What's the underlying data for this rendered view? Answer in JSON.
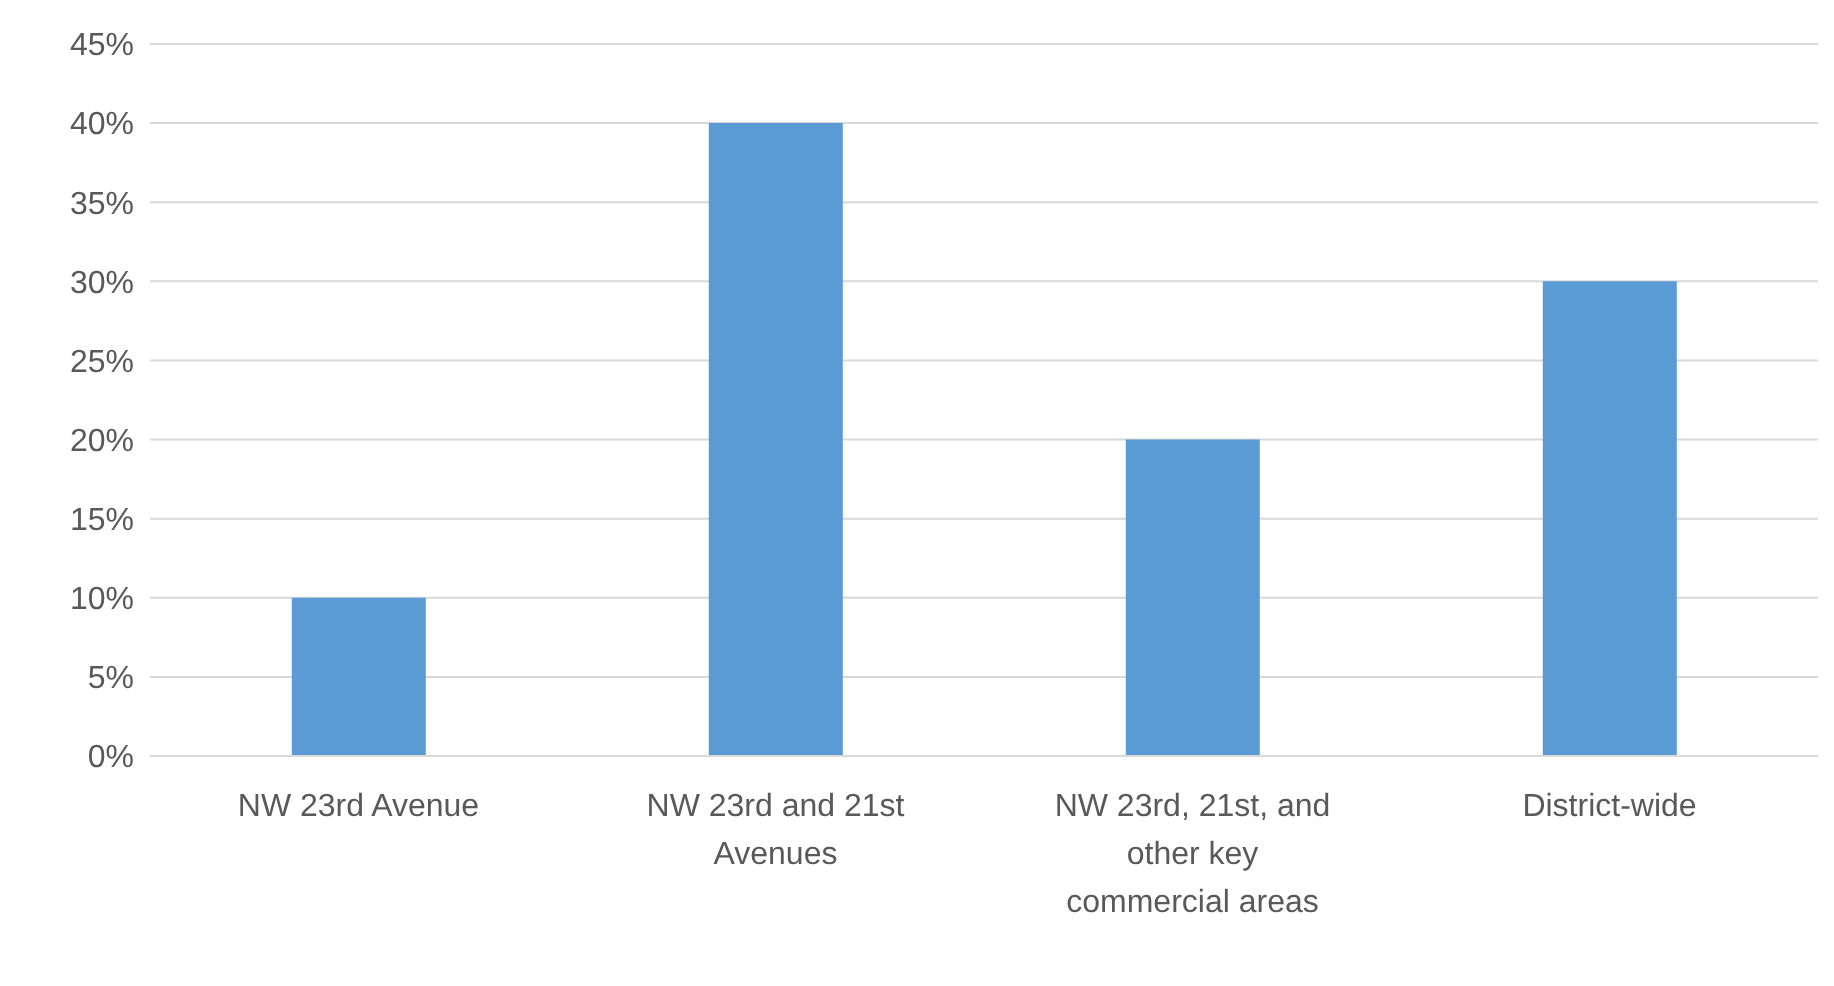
{
  "chart_data": {
    "type": "bar",
    "categories": [
      "NW 23rd Avenue",
      "NW 23rd and 21st Avenues",
      "NW 23rd, 21st, and other key commercial areas",
      "District-wide"
    ],
    "values": [
      10,
      40,
      20,
      30
    ],
    "color": "#5b9bd5",
    "ylim": [
      0,
      45
    ],
    "yticks": [
      {
        "value": 0,
        "label": "0%"
      },
      {
        "value": 5,
        "label": "5%"
      },
      {
        "value": 10,
        "label": "10%"
      },
      {
        "value": 15,
        "label": "15%"
      },
      {
        "value": 20,
        "label": "20%"
      },
      {
        "value": 25,
        "label": "25%"
      },
      {
        "value": 30,
        "label": "30%"
      },
      {
        "value": 35,
        "label": "35%"
      },
      {
        "value": 40,
        "label": "40%"
      },
      {
        "value": 45,
        "label": "45%"
      }
    ],
    "grid": "y",
    "legend": false
  }
}
